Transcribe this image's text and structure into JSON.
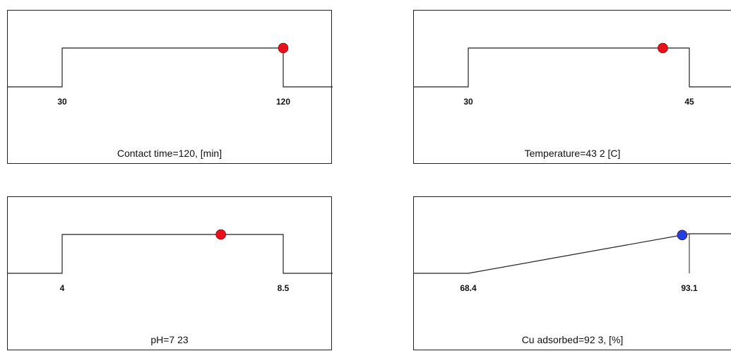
{
  "chart_data": [
    {
      "type": "line",
      "shape": "step",
      "x_range": [
        30,
        120
      ],
      "tick_labels": [
        "30",
        "120"
      ],
      "current_value": 120,
      "marker_color": "#e8101a",
      "caption": "Contact time=120, [min]"
    },
    {
      "type": "line",
      "shape": "step",
      "x_range": [
        30,
        45
      ],
      "tick_labels": [
        "30",
        "45"
      ],
      "current_value": 43.2,
      "marker_color": "#e8101a",
      "caption": "Temperature=43 2 [C]"
    },
    {
      "type": "line",
      "shape": "step",
      "x_range": [
        4,
        8.5
      ],
      "tick_labels": [
        "4",
        "8.5"
      ],
      "current_value": 7.23,
      "marker_color": "#e8101a",
      "caption": "pH=7 23"
    },
    {
      "type": "line",
      "shape": "ramp",
      "x_range": [
        68.4,
        93.1
      ],
      "tick_labels": [
        "68.4",
        "93.1"
      ],
      "current_value": 92.3,
      "marker_color": "#1f3fe0",
      "caption": "Cu adsorbed=92 3, [%]"
    }
  ]
}
